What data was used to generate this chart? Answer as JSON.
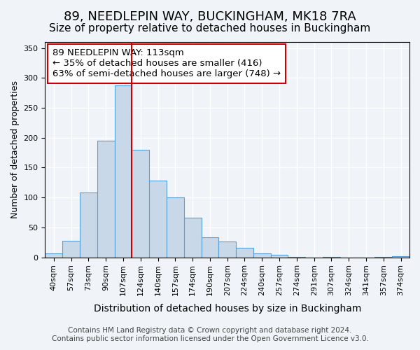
{
  "title": "89, NEEDLEPIN WAY, BUCKINGHAM, MK18 7RA",
  "subtitle": "Size of property relative to detached houses in Buckingham",
  "xlabel": "Distribution of detached houses by size in Buckingham",
  "ylabel": "Number of detached properties",
  "bar_labels": [
    "40sqm",
    "57sqm",
    "73sqm",
    "90sqm",
    "107sqm",
    "124sqm",
    "140sqm",
    "157sqm",
    "174sqm",
    "190sqm",
    "207sqm",
    "224sqm",
    "240sqm",
    "257sqm",
    "274sqm",
    "291sqm",
    "307sqm",
    "324sqm",
    "341sqm",
    "357sqm",
    "374sqm"
  ],
  "bar_values": [
    6,
    28,
    108,
    195,
    288,
    180,
    128,
    100,
    66,
    33,
    26,
    16,
    7,
    4,
    1,
    0,
    1,
    0,
    0,
    1,
    2
  ],
  "bar_color": "#c8d8e8",
  "bar_edge_color": "#5a9fd4",
  "vline_x": 4.5,
  "vline_color": "#cc0000",
  "annotation_line1": "89 NEEDLEPIN WAY: 113sqm",
  "annotation_line2": "← 35% of detached houses are smaller (416)",
  "annotation_line3": "63% of semi-detached houses are larger (748) →",
  "annotation_box_color": "#ffffff",
  "annotation_box_edge_color": "#cc0000",
  "ylim": [
    0,
    360
  ],
  "yticks": [
    0,
    50,
    100,
    150,
    200,
    250,
    300,
    350
  ],
  "footer_line1": "Contains HM Land Registry data © Crown copyright and database right 2024.",
  "footer_line2": "Contains public sector information licensed under the Open Government Licence v3.0.",
  "background_color": "#f0f4f8",
  "plot_background_color": "#f0f4f8",
  "grid_color": "#ffffff",
  "title_fontsize": 13,
  "subtitle_fontsize": 11,
  "xlabel_fontsize": 10,
  "ylabel_fontsize": 9,
  "tick_fontsize": 8,
  "footer_fontsize": 7.5,
  "annotation_fontsize": 9.5
}
